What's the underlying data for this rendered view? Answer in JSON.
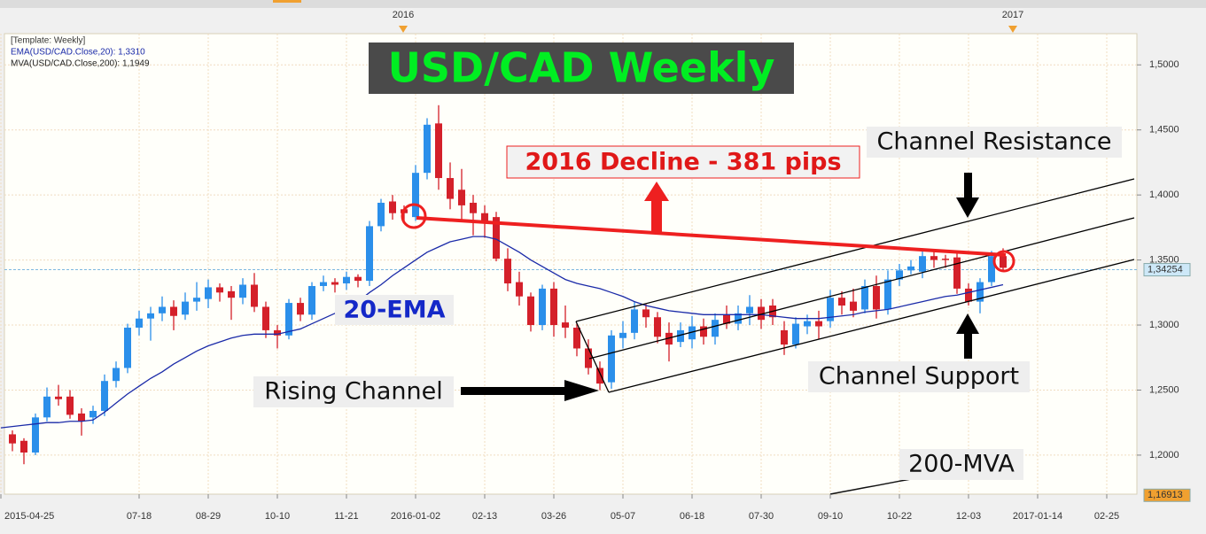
{
  "chart_data": {
    "type": "candlestick",
    "title": "USD/CAD Weekly",
    "legend_lines": [
      "[Template: Weekly]"
    ],
    "categories": [
      "2015-04-25",
      null,
      null,
      null,
      null,
      null,
      null,
      null,
      null,
      null,
      null,
      null,
      "07-18",
      null,
      null,
      null,
      null,
      null,
      "08-29",
      null,
      null,
      null,
      null,
      null,
      "10-10",
      null,
      null,
      null,
      null,
      null,
      "11-21",
      null,
      null,
      null,
      null,
      null,
      "2016-01-02",
      null,
      null,
      null,
      null,
      null,
      "02-13",
      null,
      null,
      null,
      null,
      null,
      "03-26",
      null,
      null,
      null,
      null,
      null,
      "05-07",
      null,
      null,
      null,
      null,
      null,
      "06-18",
      null,
      null,
      null,
      null,
      null,
      "07-30",
      null,
      null,
      null,
      null,
      null,
      "09-10",
      null,
      null,
      null,
      null,
      null,
      "10-22",
      null,
      null,
      null,
      null,
      null,
      "12-03",
      null,
      null,
      null,
      null,
      null,
      "2017-01-14",
      null,
      null,
      null,
      null,
      null,
      "02-25",
      null,
      null
    ],
    "top_labels": [
      "2016",
      "2017"
    ],
    "open": [
      null,
      1.216,
      1.211,
      1.202,
      1.229,
      1.245,
      1.245,
      1.232,
      1.229,
      1.234,
      1.257,
      1.267,
      1.298,
      1.305,
      1.309,
      1.314,
      1.308,
      1.318,
      1.32,
      1.329,
      1.326,
      1.321,
      1.331,
      1.314,
      1.296,
      1.292,
      1.317,
      1.308,
      1.33,
      1.333,
      1.332,
      1.337,
      1.334,
      1.376,
      1.395,
      1.389,
      1.383,
      1.417,
      1.455,
      1.413,
      1.404,
      1.394,
      1.386,
      1.383,
      1.351,
      1.333,
      1.322,
      1.3,
      1.328,
      1.302,
      1.298,
      1.282,
      1.267,
      1.256,
      1.29,
      1.294,
      1.312,
      1.306,
      1.294,
      1.287,
      1.289,
      1.299,
      1.291,
      1.308,
      1.301,
      1.309,
      1.314,
      1.315,
      1.296,
      1.285,
      1.299,
      1.303,
      1.303,
      1.321,
      1.318,
      1.312,
      1.33,
      1.312,
      1.335,
      1.342,
      1.341,
      1.353,
      1.351,
      1.352,
      1.328,
      1.318,
      1.333,
      1.353,
      null,
      null,
      null,
      null,
      null,
      null,
      null,
      null,
      null,
      null,
      null
    ],
    "high": [
      null,
      1.219,
      1.213,
      1.232,
      1.252,
      1.254,
      1.25,
      1.236,
      1.238,
      1.262,
      1.272,
      1.301,
      1.311,
      1.314,
      1.322,
      1.319,
      1.325,
      1.333,
      1.335,
      1.332,
      1.33,
      1.336,
      1.34,
      1.318,
      1.3,
      1.32,
      1.321,
      1.333,
      1.338,
      1.336,
      1.341,
      1.339,
      1.38,
      1.397,
      1.4,
      1.392,
      1.423,
      1.459,
      1.469,
      1.425,
      1.42,
      1.4,
      1.392,
      1.387,
      1.359,
      1.341,
      1.325,
      1.331,
      1.333,
      1.315,
      1.301,
      1.289,
      1.272,
      1.296,
      1.303,
      1.318,
      1.316,
      1.31,
      1.302,
      1.302,
      1.307,
      1.305,
      1.309,
      1.315,
      1.315,
      1.323,
      1.32,
      1.32,
      1.303,
      1.306,
      1.308,
      1.311,
      1.327,
      1.326,
      1.328,
      1.335,
      1.338,
      1.342,
      1.347,
      1.35,
      1.359,
      1.357,
      1.354,
      1.356,
      1.332,
      1.336,
      1.357,
      1.359,
      null,
      null,
      null,
      null,
      null,
      null,
      null,
      null,
      null,
      null,
      null
    ],
    "low": [
      null,
      1.203,
      1.193,
      1.2,
      1.226,
      1.238,
      1.228,
      1.215,
      1.224,
      1.23,
      1.252,
      1.263,
      1.292,
      1.288,
      1.303,
      1.296,
      1.304,
      1.311,
      1.313,
      1.318,
      1.304,
      1.316,
      1.31,
      1.29,
      1.282,
      1.289,
      1.303,
      1.304,
      1.326,
      1.325,
      1.327,
      1.329,
      1.33,
      1.372,
      1.381,
      1.38,
      1.38,
      1.412,
      1.404,
      1.389,
      1.38,
      1.369,
      1.367,
      1.349,
      1.326,
      1.315,
      1.295,
      1.296,
      1.291,
      1.29,
      1.276,
      1.262,
      1.25,
      1.251,
      1.282,
      1.289,
      1.298,
      1.286,
      1.272,
      1.283,
      1.282,
      1.285,
      1.285,
      1.297,
      1.296,
      1.3,
      1.297,
      1.3,
      1.277,
      1.282,
      1.293,
      1.289,
      1.298,
      1.308,
      1.306,
      1.309,
      1.305,
      1.308,
      1.33,
      1.339,
      1.336,
      1.344,
      1.344,
      1.324,
      1.315,
      1.309,
      1.33,
      1.341,
      null,
      null,
      null,
      null,
      null,
      null,
      null,
      null,
      null,
      null,
      null
    ],
    "close": [
      null,
      1.209,
      1.202,
      1.229,
      1.245,
      1.243,
      1.231,
      1.226,
      1.234,
      1.257,
      1.267,
      1.298,
      1.305,
      1.309,
      1.314,
      1.307,
      1.318,
      1.321,
      1.329,
      1.325,
      1.321,
      1.331,
      1.314,
      1.296,
      1.292,
      1.317,
      1.308,
      1.33,
      1.333,
      1.331,
      1.337,
      1.334,
      1.376,
      1.394,
      1.386,
      1.386,
      1.417,
      1.454,
      1.413,
      1.397,
      1.392,
      1.386,
      1.379,
      1.351,
      1.332,
      1.322,
      1.3,
      1.328,
      1.3,
      1.298,
      1.282,
      1.267,
      1.255,
      1.292,
      1.294,
      1.312,
      1.306,
      1.291,
      1.285,
      1.296,
      1.299,
      1.291,
      1.304,
      1.301,
      1.309,
      1.314,
      1.304,
      1.306,
      1.285,
      1.301,
      1.303,
      1.299,
      1.321,
      1.315,
      1.311,
      1.33,
      1.312,
      1.335,
      1.342,
      1.345,
      1.353,
      1.35,
      1.35,
      1.328,
      1.318,
      1.333,
      1.353,
      1.344,
      null,
      null,
      null,
      null,
      null,
      null,
      null,
      null,
      null,
      null,
      null
    ],
    "up_color": "#2b8fea",
    "down_color": "#d4202a",
    "series": [
      {
        "name": "EMA(USD/CAD.Close,20): 1,3310",
        "color": "#1a2aa8",
        "values": [
          1.221,
          1.222,
          1.223,
          1.224,
          1.225,
          1.225,
          1.226,
          1.226,
          1.227,
          1.233,
          1.24,
          1.247,
          1.253,
          1.259,
          1.264,
          1.27,
          1.275,
          1.28,
          1.284,
          1.287,
          1.29,
          1.292,
          1.293,
          1.293,
          1.293,
          1.295,
          1.297,
          1.301,
          1.305,
          1.309,
          1.313,
          1.318,
          1.325,
          1.331,
          1.338,
          1.344,
          1.35,
          1.356,
          1.36,
          1.364,
          1.366,
          1.368,
          1.368,
          1.366,
          1.361,
          1.356,
          1.35,
          1.345,
          1.34,
          1.335,
          1.332,
          1.33,
          1.328,
          1.325,
          1.322,
          1.318,
          1.315,
          1.313,
          1.311,
          1.31,
          1.309,
          1.308,
          1.308,
          1.308,
          1.308,
          1.308,
          1.308,
          1.307,
          1.306,
          1.305,
          1.305,
          1.305,
          1.306,
          1.307,
          1.308,
          1.31,
          1.311,
          1.312,
          1.314,
          1.316,
          1.318,
          1.32,
          1.322,
          1.323,
          1.325,
          1.327,
          1.329,
          1.331,
          null,
          null,
          null,
          null,
          null,
          null,
          null,
          null,
          null,
          null,
          null
        ]
      },
      {
        "name": "MVA(USD/CAD.Close,200): 1,1949",
        "color": "#111111",
        "values": [
          null,
          null,
          null,
          null,
          null,
          null,
          null,
          null,
          null,
          null,
          null,
          null,
          null,
          null,
          null,
          null,
          null,
          null,
          null,
          null,
          null,
          null,
          null,
          null,
          null,
          null,
          null,
          null,
          null,
          null,
          null,
          null,
          null,
          null,
          null,
          null,
          null,
          null,
          null,
          null,
          null,
          null,
          null,
          null,
          null,
          null,
          null,
          null,
          null,
          null,
          null,
          null,
          null,
          null,
          null,
          null,
          null,
          null,
          null,
          null,
          null,
          null,
          null,
          null,
          null,
          null,
          null,
          null,
          null,
          null,
          null,
          null,
          1.17,
          1.1717,
          1.1733,
          1.175,
          1.1766,
          1.1783,
          1.18,
          1.1816,
          1.1833,
          1.185,
          1.1866,
          1.1883,
          1.19,
          1.1916,
          1.1933,
          1.1949,
          null,
          null,
          null,
          null,
          null,
          null,
          null,
          null,
          null,
          null,
          null
        ]
      }
    ],
    "ylim": [
      1.17,
      1.524
    ],
    "yticks": [
      {
        "value": 1.2,
        "label": "1,2000"
      },
      {
        "value": 1.25,
        "label": "1,2500"
      },
      {
        "value": 1.3,
        "label": "1,3000"
      },
      {
        "value": 1.35,
        "label": "1,3500"
      },
      {
        "value": 1.4,
        "label": "1,4000"
      },
      {
        "value": 1.45,
        "label": "1,4500"
      },
      {
        "value": 1.5,
        "label": "1,5000"
      }
    ],
    "price_tags": [
      {
        "value": 1.34254,
        "label": "1,34254"
      },
      {
        "value": 1.16913,
        "label": "1,16913"
      }
    ],
    "grid": true,
    "annotations": [
      "2016 Decline - 381 pips",
      "Channel Resistance",
      "20-EMA",
      "Rising Channel",
      "Channel Support",
      "200-MVA"
    ]
  }
}
